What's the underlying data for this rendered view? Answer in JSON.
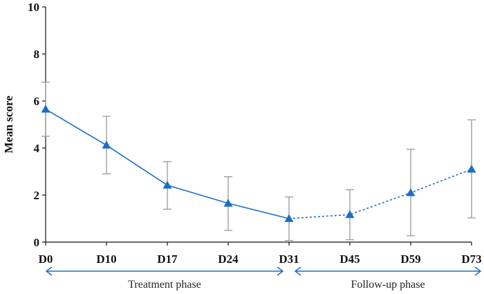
{
  "chart_data": {
    "type": "line",
    "ylabel": "Mean score",
    "ylim": [
      0,
      10
    ],
    "yticks": [
      "0",
      "2",
      "4",
      "6",
      "8",
      "10"
    ],
    "categories": [
      "D0",
      "D10",
      "D17",
      "D24",
      "D31",
      "D45",
      "D59",
      "D73"
    ],
    "values": [
      5.65,
      4.12,
      2.42,
      1.65,
      1.0,
      1.17,
      2.1,
      3.1
    ],
    "error_bars": [
      {
        "low": 4.5,
        "high": 6.8
      },
      {
        "low": 2.9,
        "high": 5.35
      },
      {
        "low": 1.4,
        "high": 3.42
      },
      {
        "low": 0.5,
        "high": 2.78
      },
      {
        "low": 0.07,
        "high": 1.92
      },
      {
        "low": 0.1,
        "high": 2.23
      },
      {
        "low": 0.27,
        "high": 3.95
      },
      {
        "low": 1.03,
        "high": 5.2
      }
    ],
    "segments": [
      {
        "style": "solid",
        "from": 0,
        "to": 4
      },
      {
        "style": "dotted",
        "from": 4,
        "to": 7
      }
    ],
    "phases": [
      {
        "label": "Treatment phase",
        "from": 0,
        "to": 4
      },
      {
        "label": "Follow-up phase",
        "from": 4,
        "to": 7
      }
    ],
    "grid": false,
    "colors": {
      "line": "#1a6fc4",
      "marker": "#1a6fc4",
      "error": "#999999",
      "axis": "#111111",
      "phase_arrow": "#1a6fc4"
    }
  }
}
